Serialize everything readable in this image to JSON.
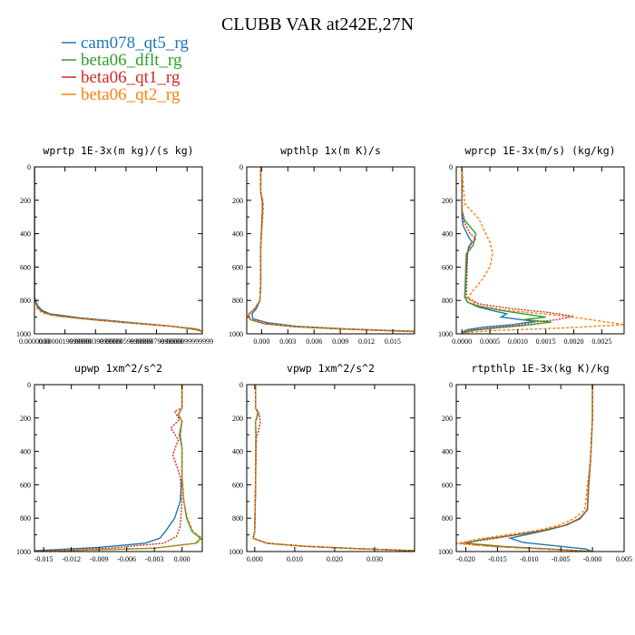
{
  "figure": {
    "title": "CLUBB VAR at242E,27N",
    "legend": [
      {
        "label": "cam078_qt5_rg",
        "color": "#1f77b4"
      },
      {
        "label": "beta06_dflt_rg",
        "color": "#2ca02c"
      },
      {
        "label": "beta06_qt1_rg",
        "color": "#d62728"
      },
      {
        "label": "beta06_qt2_rg",
        "color": "#ff7f0e"
      }
    ]
  },
  "chart_data": [
    {
      "type": "line",
      "title": "wprtp  1E-3x(m kg)/(s kg)",
      "xlim": [
        0,
        1.1e-05
      ],
      "ylim": [
        0,
        1000
      ],
      "y_reversed": true,
      "xticks": [
        0,
        2e-06,
        4e-06,
        6e-06,
        8e-06,
        1e-05
      ],
      "xtick_labels": [
        "0.0000000",
        "0.0000019999999",
        "0.0000039999999",
        "0.0000059999999",
        "0.0000079999999",
        "0.0000099999999"
      ],
      "yticks": [
        0,
        200,
        400,
        600,
        800,
        1000
      ],
      "ytick_labels": [
        "0",
        "200",
        "400",
        "600",
        "800",
        "1000"
      ],
      "series": [
        {
          "color": "#1f77b4",
          "x": [
            0,
            0,
            0,
            0,
            2e-07,
            5e-07,
            1e-06,
            3e-06,
            6e-06,
            8.5e-06,
            1.05e-05,
            1.1e-05
          ],
          "y": [
            0,
            300,
            600,
            780,
            830,
            860,
            880,
            905,
            930,
            950,
            970,
            985
          ]
        },
        {
          "color": "#2ca02c",
          "x": [
            0,
            0,
            0,
            0,
            2e-07,
            5e-07,
            1e-06,
            3e-06,
            6e-06,
            9e-06,
            1.08e-05,
            1.1e-05
          ],
          "y": [
            0,
            300,
            600,
            790,
            840,
            865,
            885,
            908,
            933,
            955,
            975,
            990
          ]
        },
        {
          "color": "#d62728",
          "x": [
            0,
            0,
            0,
            0,
            2e-07,
            5e-07,
            1e-06,
            3e-06,
            6e-06,
            9e-06,
            1.07e-05,
            1.1e-05
          ],
          "y": [
            0,
            300,
            600,
            790,
            840,
            865,
            885,
            908,
            933,
            955,
            975,
            990
          ]
        },
        {
          "color": "#ff7f0e",
          "x": [
            0,
            0,
            0,
            0,
            2e-07,
            5e-07,
            1.5e-06,
            4e-06,
            7e-06,
            9.5e-06,
            1.1e-05
          ],
          "y": [
            0,
            300,
            600,
            800,
            850,
            875,
            895,
            918,
            940,
            960,
            985
          ]
        }
      ]
    },
    {
      "type": "line",
      "title": "wpthlp  1x(m K)/s",
      "xlim": [
        -0.0017,
        0.0175
      ],
      "ylim": [
        0,
        1000
      ],
      "y_reversed": true,
      "xticks": [
        0,
        0.003,
        0.006,
        0.009,
        0.012,
        0.015
      ],
      "xtick_labels": [
        "0.000",
        "0.003",
        "0.006",
        "0.009",
        "0.012",
        "0.015"
      ],
      "yticks": [
        0,
        200,
        400,
        600,
        800,
        1000
      ],
      "ytick_labels": [
        "0",
        "200",
        "400",
        "600",
        "800",
        "1000"
      ],
      "series": [
        {
          "color": "#1f77b4",
          "x": [
            -0.0001,
            -0.0001,
            0.0001,
            0.0001,
            -0.0001,
            -0.0001,
            -0.0002,
            -0.0006,
            -0.0011,
            -0.001,
            0.0008,
            0.004,
            0.0095,
            0.0175
          ],
          "y": [
            0,
            150,
            210,
            260,
            480,
            700,
            800,
            850,
            880,
            910,
            935,
            955,
            970,
            985
          ]
        },
        {
          "color": "#2ca02c",
          "x": [
            -0.0001,
            -0.0001,
            0.0001,
            0.0001,
            -0.0001,
            -0.0001,
            -0.0002,
            -0.0008,
            -0.0015,
            -0.0013,
            0.0004,
            0.004,
            0.0095,
            0.0175
          ],
          "y": [
            0,
            150,
            210,
            260,
            480,
            700,
            800,
            850,
            885,
            915,
            940,
            958,
            972,
            987
          ]
        },
        {
          "color": "#d62728",
          "x": [
            -0.0001,
            -0.0001,
            0.0001,
            0.0001,
            -0.0001,
            -0.0001,
            -0.0002,
            -0.0008,
            -0.0015,
            -0.0013,
            0.0004,
            0.004,
            0.0095,
            0.0175
          ],
          "y": [
            0,
            150,
            210,
            260,
            480,
            700,
            800,
            850,
            885,
            915,
            940,
            958,
            972,
            987
          ]
        },
        {
          "color": "#ff7f0e",
          "x": [
            -0.0001,
            -0.0001,
            0.0002,
            0.0002,
            -0.0001,
            -0.0001,
            -0.0002,
            -0.0008,
            -0.0016,
            -0.0012,
            0.0006,
            0.0045,
            0.01,
            0.0175
          ],
          "y": [
            0,
            150,
            210,
            260,
            480,
            700,
            800,
            850,
            885,
            915,
            940,
            958,
            972,
            987
          ]
        }
      ]
    },
    {
      "type": "line",
      "title": "wprcp  1E-3x(m/s) (kg/kg)",
      "xlim": [
        -0.0001,
        0.0029
      ],
      "ylim": [
        0,
        1000
      ],
      "y_reversed": true,
      "xticks": [
        0,
        0.0005,
        0.001,
        0.0015,
        0.002,
        0.0025
      ],
      "xtick_labels": [
        "0.0000",
        "0.0005",
        "0.0010",
        "0.0015",
        "0.0020",
        "0.0025"
      ],
      "yticks": [
        0,
        200,
        400,
        600,
        800,
        1000
      ],
      "ytick_labels": [
        "0",
        "200",
        "400",
        "600",
        "800",
        "1000"
      ],
      "series": [
        {
          "color": "#1f77b4",
          "x": [
            0,
            0,
            2e-05,
            0.00012,
            0.00018,
            0.00012,
            0.0001,
            5e-05,
            0.0001,
            0.0003,
            0.0006,
            0.0008,
            0.0007,
            0.0013,
            0.0009,
            0.0004,
            0.0001,
            0
          ],
          "y": [
            0,
            300,
            350,
            420,
            450,
            480,
            520,
            780,
            810,
            840,
            865,
            880,
            900,
            925,
            945,
            960,
            975,
            990
          ]
        },
        {
          "color": "#2ca02c",
          "x": [
            0,
            0,
            5e-05,
            0.00025,
            0.0002,
            8e-05,
            5e-05,
            0.0001,
            0.0003,
            0.0007,
            0.0011,
            0.0015,
            0.0011,
            0.0016,
            0.0011,
            0.0006,
            0.0002,
            0
          ],
          "y": [
            0,
            260,
            320,
            400,
            470,
            520,
            780,
            810,
            835,
            860,
            880,
            900,
            915,
            930,
            950,
            965,
            980,
            995
          ]
        },
        {
          "color": "#d62728",
          "x": [
            0,
            0,
            4e-05,
            0.00015,
            0.00025,
            0.00015,
            0.0001,
            8e-05,
            0.0003,
            0.0009,
            0.0015,
            0.002,
            0.0017,
            0.0013,
            0.001,
            0.0005,
            0.0001,
            0
          ],
          "y": [
            0,
            280,
            330,
            400,
            430,
            470,
            520,
            780,
            820,
            850,
            870,
            895,
            915,
            930,
            950,
            965,
            980,
            995
          ]
        },
        {
          "color": "#ff7f0e",
          "x": [
            0,
            5e-05,
            0.0003,
            0.0004,
            0.0005,
            0.00055,
            0.0005,
            0.00035,
            0.0002,
            0.0001,
            0.0003,
            0.0008,
            0.0016,
            0.0022,
            0.0029,
            0.0018,
            0.0006,
            0
          ],
          "y": [
            0,
            220,
            310,
            380,
            450,
            520,
            600,
            680,
            740,
            790,
            830,
            860,
            885,
            910,
            945,
            965,
            980,
            995
          ]
        }
      ]
    },
    {
      "type": "line",
      "title": "upwp  1xm^2/s^2",
      "xlim": [
        -0.016,
        0.0022
      ],
      "ylim": [
        0,
        1000
      ],
      "y_reversed": true,
      "xticks": [
        -0.015,
        -0.012,
        -0.009,
        -0.006,
        -0.003,
        0
      ],
      "xtick_labels": [
        "-0.015",
        "-0.012",
        "-0.009",
        "-0.006",
        "-0.003",
        "0.000"
      ],
      "yticks": [
        0,
        200,
        400,
        600,
        800,
        1000
      ],
      "ytick_labels": [
        "0",
        "200",
        "400",
        "600",
        "800",
        "1000"
      ],
      "series": [
        {
          "color": "#1f77b4",
          "x": [
            0,
            0,
            -0.0004,
            0,
            -0.0002,
            0,
            0,
            -0.0002,
            -0.0008,
            -0.0018,
            -0.0024,
            -0.004,
            -0.009,
            -0.016
          ],
          "y": [
            0,
            140,
            180,
            220,
            300,
            380,
            550,
            700,
            800,
            880,
            920,
            950,
            975,
            995
          ]
        },
        {
          "color": "#2ca02c",
          "x": [
            0,
            0,
            -0.0004,
            0,
            -0.0003,
            0,
            0,
            0.0002,
            0.0005,
            0.0011,
            0.002,
            0.0015,
            -0.003,
            -0.016
          ],
          "y": [
            0,
            140,
            180,
            220,
            300,
            380,
            550,
            700,
            800,
            880,
            920,
            950,
            980,
            1000
          ]
        },
        {
          "color": "#d62728",
          "x": [
            0,
            0,
            -0.0008,
            -0.0003,
            -0.0012,
            -0.0004,
            -0.001,
            -0.0002,
            0,
            -0.0002,
            -0.0006,
            -0.002,
            -0.008,
            -0.016
          ],
          "y": [
            0,
            140,
            160,
            210,
            260,
            330,
            420,
            550,
            700,
            850,
            910,
            950,
            980,
            1000
          ]
        },
        {
          "color": "#ff7f0e",
          "x": [
            0,
            0,
            -0.0005,
            0,
            -0.0003,
            0,
            0,
            0.0002,
            0.0006,
            0.0012,
            0.0022,
            0.0016,
            -0.003,
            -0.016
          ],
          "y": [
            0,
            140,
            180,
            220,
            300,
            380,
            550,
            700,
            800,
            880,
            920,
            950,
            980,
            1000
          ]
        }
      ]
    },
    {
      "type": "line",
      "title": "vpwp  1xm^2/s^2",
      "xlim": [
        -0.002,
        0.04
      ],
      "ylim": [
        0,
        1000
      ],
      "y_reversed": true,
      "xticks": [
        0,
        0.01,
        0.02,
        0.03
      ],
      "xtick_labels": [
        "0.000",
        "0.010",
        "0.020",
        "0.030"
      ],
      "yticks": [
        0,
        200,
        400,
        600,
        800,
        1000
      ],
      "ytick_labels": [
        "0",
        "200",
        "400",
        "600",
        "800",
        "1000"
      ],
      "series": [
        {
          "color": "#1f77b4",
          "x": [
            0.0002,
            0.0002,
            0.0008,
            0.0002,
            0.0003,
            0.0002,
            0,
            -0.0004,
            0.003,
            0.012,
            0.025,
            0.04
          ],
          "y": [
            0,
            140,
            170,
            220,
            300,
            600,
            880,
            920,
            950,
            968,
            982,
            995
          ]
        },
        {
          "color": "#2ca02c",
          "x": [
            0.0002,
            0.0002,
            0.001,
            0.0002,
            0.0003,
            0.0002,
            0,
            -0.0004,
            0.003,
            0.012,
            0.025,
            0.04
          ],
          "y": [
            0,
            140,
            170,
            220,
            300,
            600,
            880,
            920,
            950,
            968,
            982,
            995
          ]
        },
        {
          "color": "#d62728",
          "x": [
            0.0002,
            0.0002,
            0.0012,
            0.0014,
            0.0009,
            0.0004,
            0.0002,
            0,
            -0.0004,
            0.003,
            0.012,
            0.025,
            0.04
          ],
          "y": [
            0,
            140,
            180,
            230,
            280,
            320,
            600,
            880,
            920,
            950,
            968,
            982,
            995
          ]
        },
        {
          "color": "#ff7f0e",
          "x": [
            0.0002,
            0.0002,
            0.0009,
            0.0002,
            0.0003,
            0.0002,
            0,
            -0.0004,
            0.003,
            0.012,
            0.025,
            0.04
          ],
          "y": [
            0,
            140,
            170,
            220,
            300,
            600,
            880,
            920,
            950,
            968,
            982,
            995
          ]
        }
      ]
    },
    {
      "type": "line",
      "title": "rtpthlp  1E-3x(kg K)/kg",
      "xlim": [
        -0.0215,
        0.005
      ],
      "ylim": [
        0,
        1000
      ],
      "y_reversed": true,
      "xticks": [
        -0.02,
        -0.015,
        -0.01,
        -0.005,
        0,
        0.005
      ],
      "xtick_labels": [
        "-0.020",
        "-0.015",
        "-0.010",
        "-0.005",
        "-0.000",
        "0.005"
      ],
      "yticks": [
        0,
        200,
        400,
        600,
        800,
        1000
      ],
      "ytick_labels": [
        "0",
        "200",
        "400",
        "600",
        "800",
        "1000"
      ],
      "series": [
        {
          "color": "#1f77b4",
          "x": [
            0,
            0,
            -0.0003,
            -0.0006,
            -0.0008,
            -0.002,
            -0.004,
            -0.007,
            -0.01,
            -0.013,
            -0.011,
            -0.006,
            -0.001,
            0
          ],
          "y": [
            0,
            200,
            450,
            600,
            750,
            800,
            840,
            870,
            895,
            920,
            945,
            965,
            985,
            1000
          ]
        },
        {
          "color": "#2ca02c",
          "x": [
            0,
            0,
            -0.0003,
            -0.0006,
            -0.0008,
            -0.002,
            -0.0045,
            -0.008,
            -0.012,
            -0.017,
            -0.02,
            -0.014,
            -0.005,
            0
          ],
          "y": [
            0,
            200,
            450,
            600,
            750,
            805,
            845,
            875,
            900,
            925,
            950,
            970,
            988,
            1000
          ]
        },
        {
          "color": "#d62728",
          "x": [
            0,
            0,
            -0.0003,
            -0.0006,
            -0.0008,
            -0.002,
            -0.0045,
            -0.008,
            -0.012,
            -0.016,
            -0.021,
            -0.015,
            -0.006,
            0
          ],
          "y": [
            0,
            200,
            450,
            600,
            750,
            805,
            845,
            875,
            900,
            925,
            950,
            970,
            988,
            1000
          ]
        },
        {
          "color": "#ff7f0e",
          "x": [
            0,
            0,
            -0.0003,
            -0.0008,
            -0.0012,
            -0.003,
            -0.0055,
            -0.009,
            -0.0135,
            -0.018,
            -0.0215,
            -0.016,
            -0.006,
            0
          ],
          "y": [
            0,
            200,
            450,
            600,
            750,
            805,
            845,
            875,
            900,
            925,
            952,
            970,
            988,
            1000
          ]
        }
      ]
    }
  ]
}
